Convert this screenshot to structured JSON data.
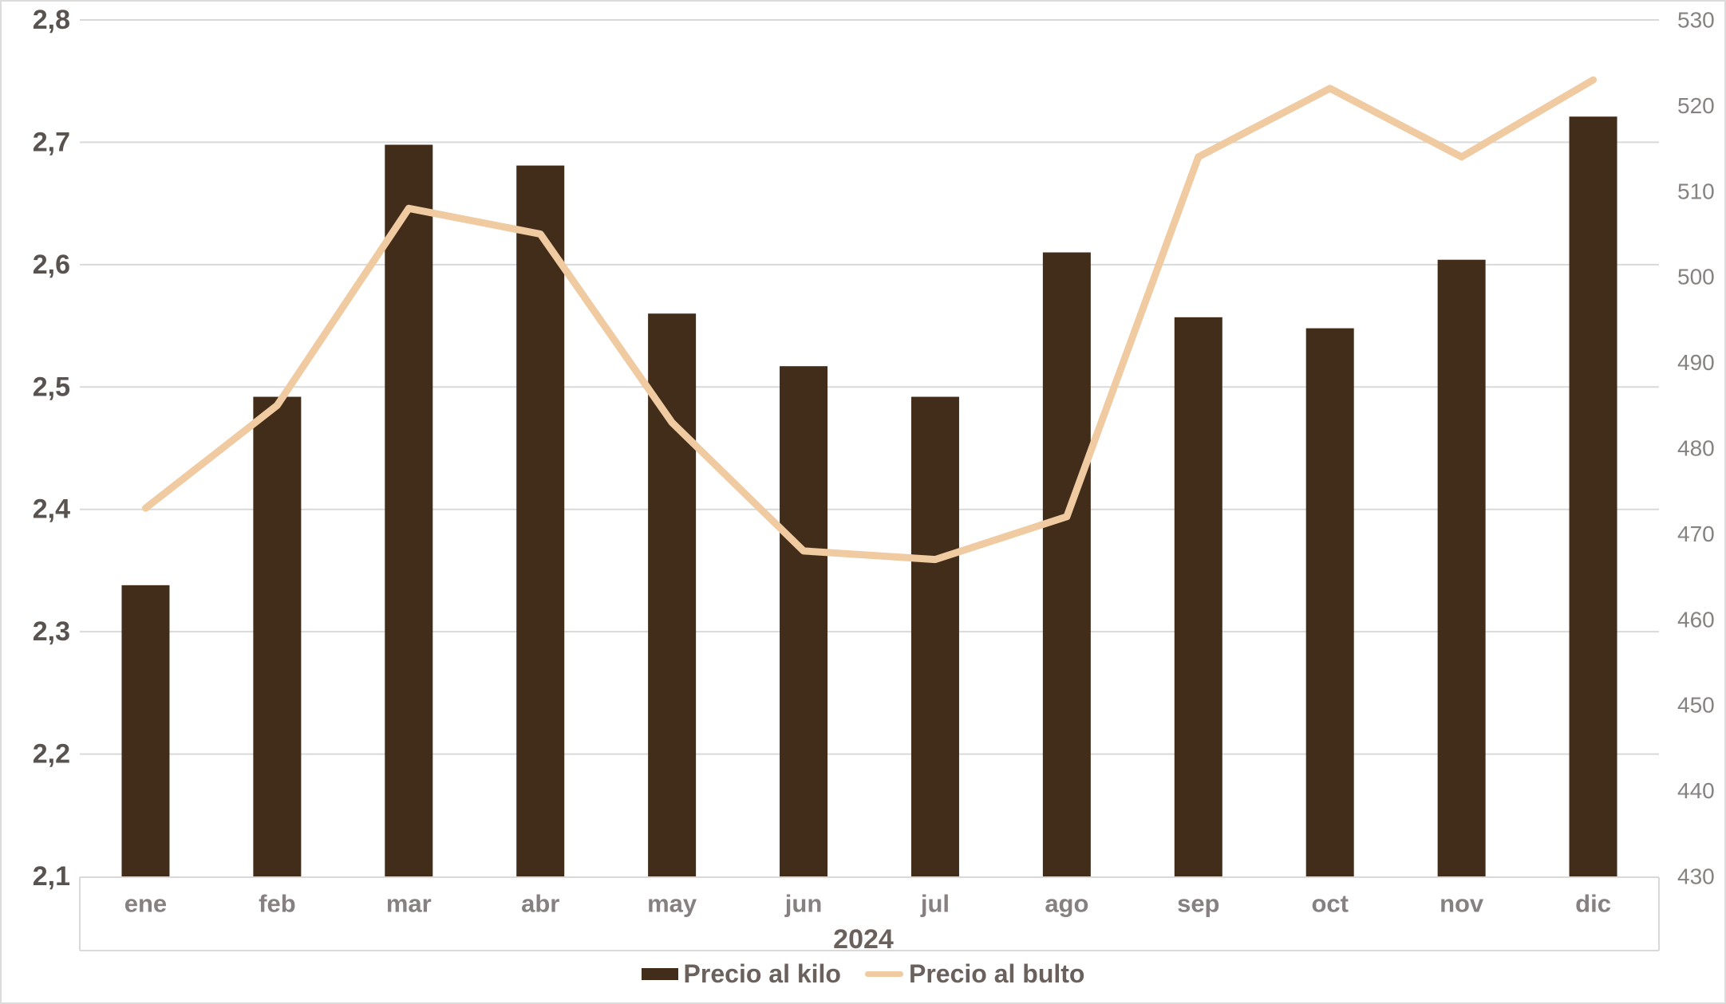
{
  "chart_data": {
    "type": "combo-bar-line",
    "title": "",
    "x_categories": [
      "ene",
      "feb",
      "mar",
      "abr",
      "may",
      "jun",
      "jul",
      "ago",
      "sep",
      "oct",
      "nov",
      "dic"
    ],
    "x_axis_group_label": "2024",
    "series": [
      {
        "name": "Precio al kilo",
        "type": "bar",
        "axis": "left",
        "color": "#422D1A",
        "values": [
          2.338,
          2.492,
          2.698,
          2.681,
          2.56,
          2.517,
          2.492,
          2.61,
          2.557,
          2.548,
          2.604,
          2.721
        ]
      },
      {
        "name": "Precio al bulto",
        "type": "line",
        "axis": "right",
        "color": "#F0CAA1",
        "values": [
          473,
          485,
          508,
          505,
          483,
          468,
          467,
          472,
          514,
          522,
          514,
          523
        ]
      }
    ],
    "left_axis": {
      "min": 2.1,
      "max": 2.8,
      "tick_step": 0.1,
      "tick_labels": [
        "2,8",
        "2,7",
        "2,6",
        "2,5",
        "2,4",
        "2,3",
        "2,2",
        "2,1"
      ]
    },
    "right_axis": {
      "min": 430,
      "max": 530,
      "tick_step": 10,
      "tick_labels": [
        "530",
        "520",
        "510",
        "500",
        "490",
        "480",
        "470",
        "460",
        "450",
        "440",
        "430"
      ]
    },
    "grid": true,
    "legend_position": "bottom",
    "colors": {
      "gridline": "#D9D9D9",
      "axis_box": "#D9D9D9",
      "left_tick_text": "#595350",
      "right_tick_text": "#868280",
      "month_text": "#868080",
      "year_text": "#6B615C",
      "legend_text": "#6B615C"
    }
  }
}
